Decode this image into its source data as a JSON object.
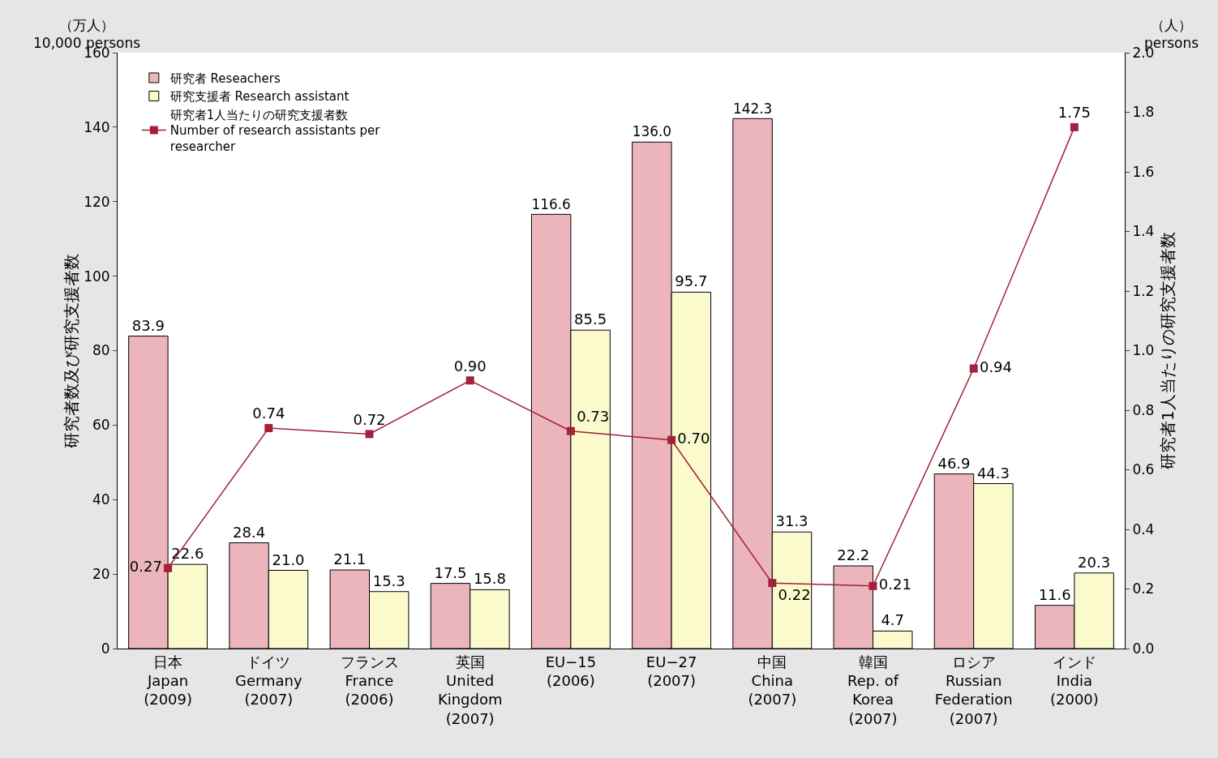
{
  "chart_data": {
    "type": "bar",
    "categories": [
      "日本\nJapan\n(2009)",
      "ドイツ\nGermany\n(2007)",
      "フランス\nFrance\n(2006)",
      "英国\nUnited\nKingdom\n(2007)",
      "EU−15\n(2006)",
      "EU−27\n(2007)",
      "中国\nChina\n(2007)",
      "韓国\nRep. of\nKorea\n(2007)",
      "ロシア\nRussian\nFederation\n(2007)",
      "インド\nIndia\n(2000)"
    ],
    "series": [
      {
        "name": "研究者 Reseachers",
        "color": "#ebb5bb",
        "values": [
          83.9,
          28.4,
          21.1,
          17.5,
          116.6,
          136.0,
          142.3,
          22.2,
          46.9,
          11.6
        ],
        "value_labels": [
          "83.9",
          "28.4",
          "21.1",
          "17.5",
          "116.6",
          "136.0",
          "142.3",
          "22.2",
          "46.9",
          "11.6"
        ]
      },
      {
        "name": "研究支援者 Research assistant",
        "color": "#fafacd",
        "values": [
          22.6,
          21.0,
          15.3,
          15.8,
          85.5,
          95.7,
          31.3,
          4.7,
          44.3,
          20.3
        ],
        "value_labels": [
          "22.6",
          "21.0",
          "15.3",
          "15.8",
          "85.5",
          "95.7",
          "31.3",
          "4.7",
          "44.3",
          "20.3"
        ]
      },
      {
        "name": "研究者1人当たりの研究支援者数\nNumber of research assistants per\nresearcher",
        "type": "line",
        "axis": "y2",
        "color": "#a3213a",
        "values": [
          0.27,
          0.74,
          0.72,
          0.9,
          0.73,
          0.7,
          0.22,
          0.21,
          0.94,
          1.75
        ],
        "value_labels": [
          "0.27",
          "0.74",
          "0.72",
          "0.90",
          "0.73",
          "0.70",
          "0.22",
          "0.21",
          "0.94",
          "1.75"
        ]
      }
    ],
    "ylabel": "研究者数及び研究支援者数",
    "y2label": "研究者1人当たりの研究支援者数",
    "ylim": [
      0,
      160
    ],
    "yticks": [
      0,
      20,
      40,
      60,
      80,
      100,
      120,
      140,
      160
    ],
    "y2lim": [
      0,
      2.0
    ],
    "y2ticks": [
      {
        "value": 0,
        "label": "0.0"
      },
      {
        "value": 0.2,
        "label": "0.2"
      },
      {
        "value": 0.4,
        "label": "0.4"
      },
      {
        "value": 0.6,
        "label": "0.6"
      },
      {
        "value": 0.8,
        "label": "0.8"
      },
      {
        "value": 1.0,
        "label": "1.0"
      },
      {
        "value": 1.2,
        "label": "1.2"
      },
      {
        "value": 1.4,
        "label": "1.4"
      },
      {
        "value": 1.6,
        "label": "1.6"
      },
      {
        "value": 1.8,
        "label": "1.8"
      },
      {
        "value": 2.0,
        "label": "2.0"
      }
    ],
    "annotations": [
      "（万人）\n10,000 persons",
      "（人）\npersons"
    ],
    "grid": false,
    "legend": "top left",
    "marker": "square",
    "line_style": "solid"
  }
}
